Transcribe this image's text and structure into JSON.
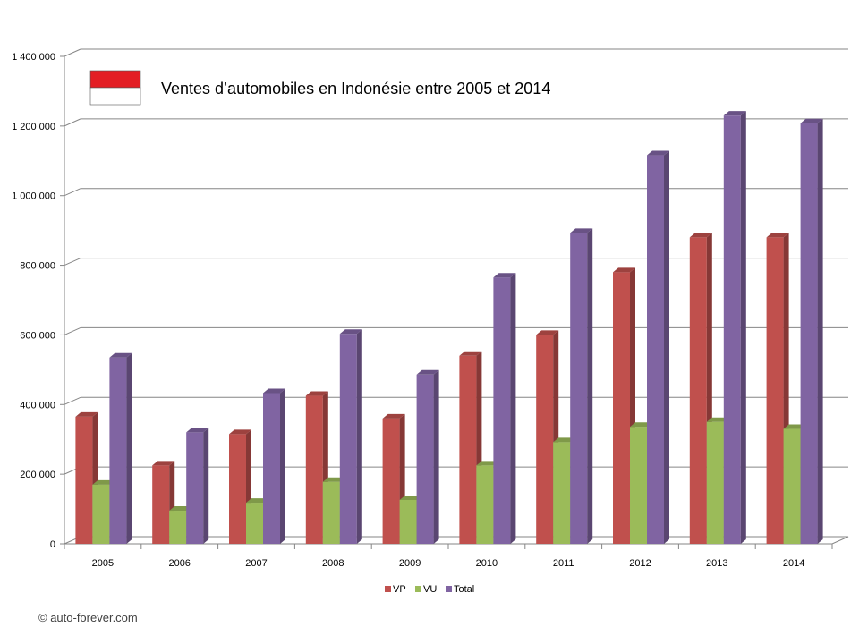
{
  "chart_data": {
    "type": "bar",
    "title": "Ventes d’automobiles en Indonésie entre 2005 et 2014",
    "xlabel": "",
    "ylabel": "",
    "ylim": [
      0,
      1400000
    ],
    "y_ticks": [
      0,
      200000,
      400000,
      600000,
      800000,
      1000000,
      1200000,
      1400000
    ],
    "y_tick_labels": [
      "0",
      "200 000",
      "400 000",
      "600 000",
      "800 000",
      "1 000 000",
      "1 200 000",
      "1 400 000"
    ],
    "categories": [
      "2005",
      "2006",
      "2007",
      "2008",
      "2009",
      "2010",
      "2011",
      "2012",
      "2013",
      "2014"
    ],
    "series": [
      {
        "name": "VP",
        "color": "#c0504d",
        "values": [
          365000,
          225000,
          315000,
          425000,
          360000,
          540000,
          600000,
          780000,
          880000,
          880000
        ]
      },
      {
        "name": "VU",
        "color": "#9bbb59",
        "values": [
          170000,
          95000,
          118000,
          178000,
          126000,
          225000,
          292000,
          336000,
          350000,
          330000
        ]
      },
      {
        "name": "Total",
        "color": "#8064a2",
        "values": [
          535000,
          320000,
          433000,
          603000,
          486000,
          765000,
          893000,
          1116000,
          1230000,
          1208000
        ]
      }
    ],
    "grid": true,
    "legend_position": "bottom-center",
    "style": "3d-clustered-column"
  },
  "flag": {
    "name": "flag-indonesia-icon",
    "colors": [
      "#e31e24",
      "#ffffff"
    ]
  },
  "credit": "© auto-forever.com"
}
